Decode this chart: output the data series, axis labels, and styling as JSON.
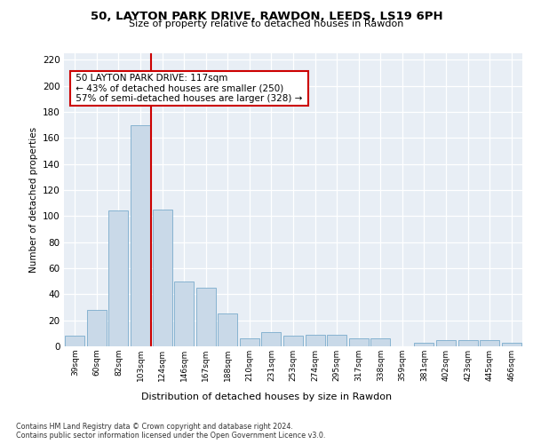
{
  "title": "50, LAYTON PARK DRIVE, RAWDON, LEEDS, LS19 6PH",
  "subtitle": "Size of property relative to detached houses in Rawdon",
  "xlabel": "Distribution of detached houses by size in Rawdon",
  "ylabel": "Number of detached properties",
  "bar_color": "#c9d9e8",
  "bar_edge_color": "#7aabcc",
  "categories": [
    "39sqm",
    "60sqm",
    "82sqm",
    "103sqm",
    "124sqm",
    "146sqm",
    "167sqm",
    "188sqm",
    "210sqm",
    "231sqm",
    "253sqm",
    "274sqm",
    "295sqm",
    "317sqm",
    "338sqm",
    "359sqm",
    "381sqm",
    "402sqm",
    "423sqm",
    "445sqm",
    "466sqm"
  ],
  "values": [
    8,
    28,
    104,
    170,
    105,
    50,
    45,
    25,
    6,
    11,
    8,
    9,
    9,
    6,
    6,
    0,
    3,
    5,
    5,
    5,
    3
  ],
  "vline_color": "#cc0000",
  "annotation_title": "50 LAYTON PARK DRIVE: 117sqm",
  "annotation_line1": "← 43% of detached houses are smaller (250)",
  "annotation_line2": "57% of semi-detached houses are larger (328) →",
  "annotation_box_color": "#ffffff",
  "annotation_box_edge": "#cc0000",
  "ylim": [
    0,
    225
  ],
  "yticks": [
    0,
    20,
    40,
    60,
    80,
    100,
    120,
    140,
    160,
    180,
    200,
    220
  ],
  "plot_bg_color": "#e8eef5",
  "footer1": "Contains HM Land Registry data © Crown copyright and database right 2024.",
  "footer2": "Contains public sector information licensed under the Open Government Licence v3.0."
}
